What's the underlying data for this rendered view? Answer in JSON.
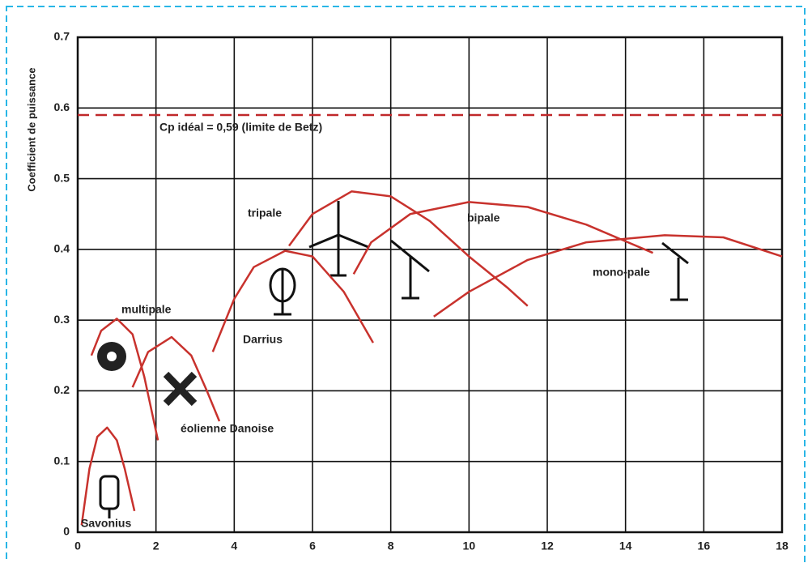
{
  "chart_data": {
    "type": "line",
    "y_label": "Coefficient de puissance",
    "xlim": [
      0,
      18
    ],
    "xticks": [
      0,
      2,
      4,
      6,
      8,
      10,
      12,
      14,
      16,
      18
    ],
    "ylim": [
      0,
      0.7
    ],
    "yticks": [
      0,
      0.1,
      0.2,
      0.3,
      0.4,
      0.5,
      0.6,
      0.7
    ],
    "grid": true,
    "reference_line": {
      "value": 0.59,
      "label": "Cp idéal = 0,59 (limite de Betz)",
      "color": "#c0282a",
      "dashed": true
    },
    "series": [
      {
        "name": "Savonius",
        "color": "#c8322d",
        "x": [
          0.1,
          0.3,
          0.5,
          0.75,
          1.0,
          1.2,
          1.45
        ],
        "values": [
          0.01,
          0.09,
          0.135,
          0.148,
          0.13,
          0.09,
          0.03
        ]
      },
      {
        "name": "multipale",
        "color": "#c8322d",
        "x": [
          0.35,
          0.6,
          1.0,
          1.4,
          1.7,
          2.05
        ],
        "values": [
          0.25,
          0.285,
          0.302,
          0.28,
          0.22,
          0.13
        ]
      },
      {
        "name": "éolienne Danoise",
        "color": "#c8322d",
        "x": [
          1.4,
          1.8,
          2.4,
          2.9,
          3.3,
          3.62
        ],
        "values": [
          0.205,
          0.255,
          0.276,
          0.25,
          0.2,
          0.157
        ]
      },
      {
        "name": "Darrius",
        "color": "#c8322d",
        "x": [
          3.45,
          4,
          4.5,
          5.3,
          6,
          6.8,
          7.55
        ],
        "values": [
          0.255,
          0.33,
          0.375,
          0.398,
          0.39,
          0.34,
          0.268
        ]
      },
      {
        "name": "tripale",
        "color": "#c8322d",
        "x": [
          5.4,
          6,
          7,
          8,
          9,
          10,
          11,
          11.5
        ],
        "values": [
          0.405,
          0.45,
          0.482,
          0.475,
          0.44,
          0.39,
          0.345,
          0.32
        ]
      },
      {
        "name": "bipale",
        "color": "#c8322d",
        "x": [
          7.05,
          7.5,
          8.5,
          10,
          11.5,
          13,
          14.7
        ],
        "values": [
          0.365,
          0.41,
          0.45,
          0.467,
          0.46,
          0.435,
          0.395
        ]
      },
      {
        "name": "mono-pale",
        "color": "#c8322d",
        "x": [
          9.1,
          10,
          11.5,
          13,
          15,
          16.5,
          18
        ],
        "values": [
          0.305,
          0.34,
          0.385,
          0.41,
          0.42,
          0.417,
          0.39
        ]
      }
    ]
  }
}
